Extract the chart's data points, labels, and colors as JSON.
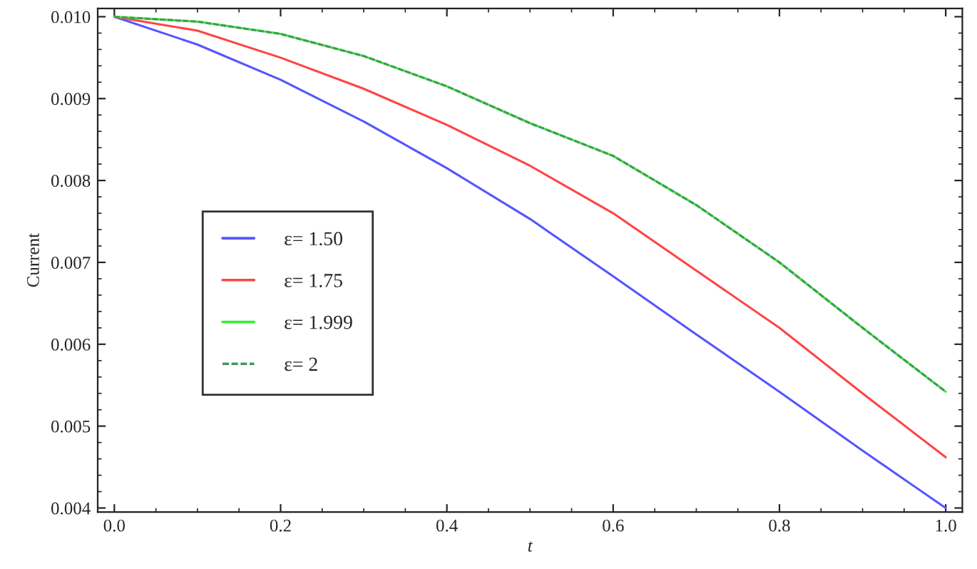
{
  "chart_data": {
    "type": "line",
    "xlabel": "t",
    "ylabel": "Current",
    "x": [
      0,
      0.1,
      0.2,
      0.3,
      0.4,
      0.5,
      0.6,
      0.7,
      0.8,
      0.9,
      1.0
    ],
    "series": [
      {
        "name": "ε= 1.50",
        "color": "#5555ff",
        "values": [
          0.01,
          0.00966,
          0.00923,
          0.00872,
          0.00815,
          0.00753,
          0.00683,
          0.00612,
          0.00542,
          0.0047,
          0.004
        ]
      },
      {
        "name": "ε= 1.75",
        "color": "#ff4444",
        "values": [
          0.01,
          0.00983,
          0.0095,
          0.00912,
          0.00868,
          0.00818,
          0.0076,
          0.0069,
          0.0062,
          0.0054,
          0.00462
        ]
      },
      {
        "name": "ε= 1.999",
        "color": "#33ee33",
        "values": [
          0.01,
          0.00994,
          0.00979,
          0.00952,
          0.00915,
          0.0087,
          0.0083,
          0.0077,
          0.007,
          0.0062,
          0.00542
        ]
      },
      {
        "name": "ε= 2",
        "color": "#44995a",
        "line_style": "dashed",
        "values": [
          0.01,
          0.00994,
          0.00979,
          0.00952,
          0.00915,
          0.0087,
          0.0083,
          0.0077,
          0.007,
          0.0062,
          0.00542
        ]
      }
    ],
    "xlim": [
      -0.02,
      1.02
    ],
    "xticks": [
      {
        "value": 0,
        "label": "0.0"
      },
      0.2,
      0.4,
      0.6,
      0.8,
      {
        "value": 1,
        "label": "1.0"
      }
    ],
    "ylim": [
      0.00395,
      0.0101
    ],
    "yticks": [
      0.004,
      0.005,
      0.006,
      0.007,
      0.008,
      0.009,
      {
        "value": 0.01,
        "label": "0.010"
      }
    ],
    "grid": false,
    "legend": "center left",
    "line_style": "solid",
    "marker": "none"
  }
}
